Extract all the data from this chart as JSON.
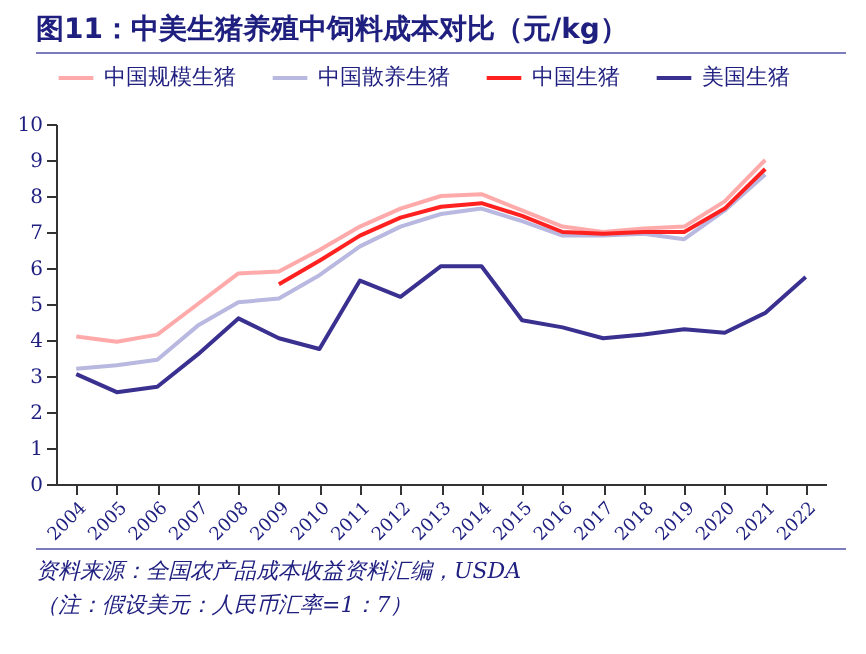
{
  "chart_data": {
    "type": "line",
    "title": "图11：中美生猪养殖中饲料成本对比（元/kg）",
    "annotations": [
      "资料来源：全国农产品成本收益资料汇编，USDA",
      "（注：假设美元：人民币汇率=1：7）"
    ],
    "categories": [
      "2004",
      "2005",
      "2006",
      "2007",
      "2008",
      "2009",
      "2010",
      "2011",
      "2012",
      "2013",
      "2014",
      "2015",
      "2016",
      "2017",
      "2018",
      "2019",
      "2020",
      "2021",
      "2022"
    ],
    "series": [
      {
        "name": "中国规模生猪",
        "color": "#ffaaaa",
        "values": [
          4.1,
          3.95,
          4.15,
          5.0,
          5.85,
          5.9,
          6.5,
          7.15,
          7.65,
          8.0,
          8.05,
          7.6,
          7.15,
          7.0,
          7.1,
          7.15,
          7.85,
          9.0,
          null
        ]
      },
      {
        "name": "中国散养生猪",
        "color": "#b8b8e0",
        "values": [
          3.2,
          3.3,
          3.45,
          4.4,
          5.05,
          5.15,
          5.8,
          6.6,
          7.15,
          7.5,
          7.65,
          7.3,
          6.9,
          6.9,
          6.95,
          6.8,
          7.6,
          8.6,
          null
        ]
      },
      {
        "name": "中国生猪",
        "color": "#ff2020",
        "values": [
          null,
          null,
          null,
          null,
          null,
          5.55,
          6.2,
          6.9,
          7.4,
          7.7,
          7.8,
          7.45,
          7.0,
          6.95,
          7.0,
          7.0,
          7.65,
          8.75,
          null
        ]
      },
      {
        "name": "美国生猪",
        "color": "#3a3090",
        "values": [
          3.05,
          2.55,
          2.7,
          3.6,
          4.6,
          4.05,
          3.75,
          5.65,
          5.2,
          6.05,
          6.05,
          4.55,
          4.35,
          4.05,
          4.15,
          4.3,
          4.2,
          4.75,
          5.75
        ]
      }
    ],
    "ylim": [
      0,
      10
    ],
    "yticks": [
      0,
      1,
      2,
      3,
      4,
      5,
      6,
      7,
      8,
      9,
      10
    ],
    "grid": false,
    "legend": "top",
    "marker": "none",
    "line_style": "solid"
  }
}
